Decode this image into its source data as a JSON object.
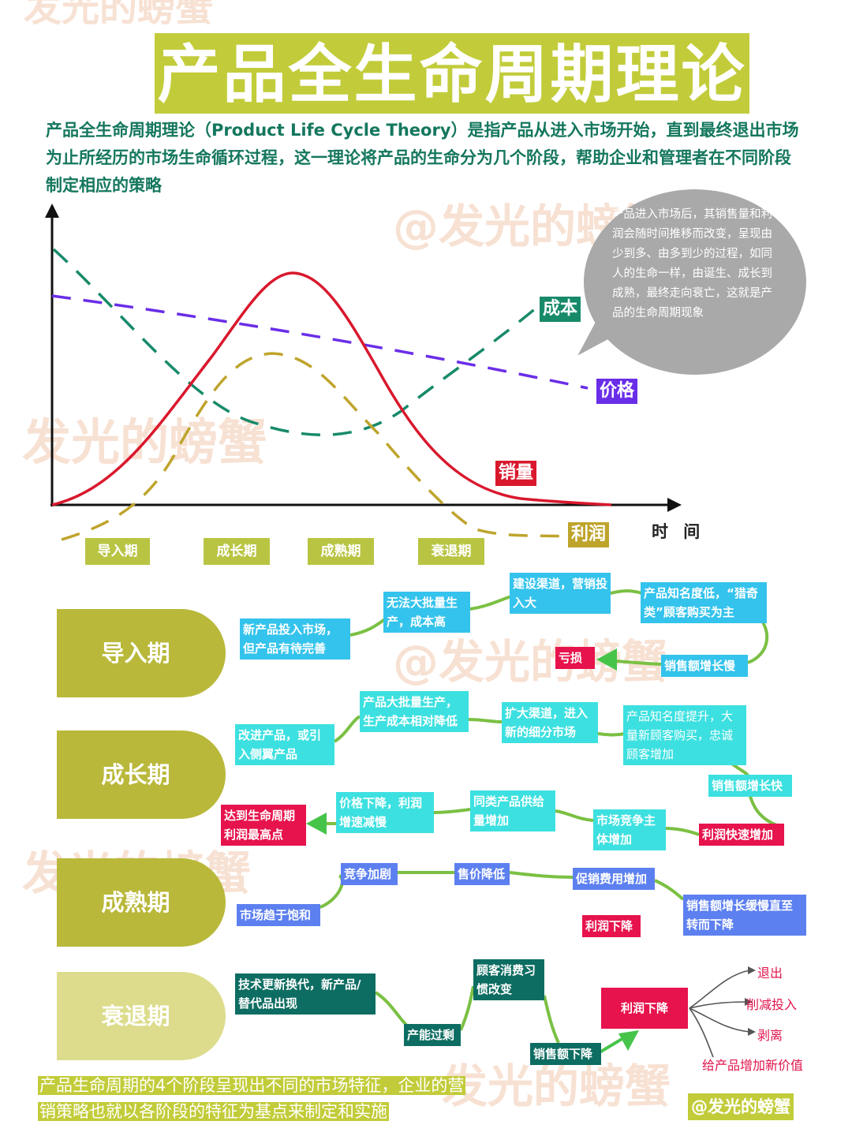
{
  "title": "产品全生命周期理论",
  "intro": "产品全生命周期理论（Product Life Cycle Theory）是指产品从进入市场开始，直到最终退出市场为止所经历的市场生命循环过程，这一理论将产品的生命分为几个阶段，帮助企业和管理者在不同阶段制定相应的策略",
  "bubble_text": "产品进入市场后，其销售量和利润会随时间推移而改变，呈现由少到多、由多到少的过程，如同人的生命一样，由诞生、成长到成熟，最终走向衰亡，这就是产品的生命周期现象",
  "chart": {
    "labels": {
      "cost": "成本",
      "price": "价格",
      "sales": "销量",
      "profit": "利润"
    },
    "x_axis": "时 间",
    "stages": [
      "导入期",
      "成长期",
      "成熟期",
      "衰退期"
    ]
  },
  "colors": {
    "cost": "#178a6a",
    "price": "#6a2ee8",
    "sales": "#d9182d",
    "profit": "#bfa42c",
    "olive": "#b9c443"
  },
  "watermark": {
    "text1": "@发光的螃蟹",
    "text2": "发光的螃蟹",
    "handle": "@发光的螃蟹"
  },
  "intro_stage": {
    "label": "导入期",
    "b1": "新产品投入市场，但产品有待完善",
    "b2": "无法大批量生产，成本高",
    "b3": "建设渠道，营销投入大",
    "b4": "产品知名度低，“猎奇类”顾客购买为主",
    "b5": "销售额增长慢",
    "b6": "亏损"
  },
  "growth_stage": {
    "label": "成长期",
    "b1": "改进产品，或引入侧翼产品",
    "b2": "产品大批量生产，生产成本相对降低",
    "b3": "扩大渠道，进入新的细分市场",
    "b4": "产品知名度提升，大量新顾客购买，忠诚顾客增加",
    "b5": "销售额增长快",
    "b6": "利润快速增加",
    "b7": "市场竞争主体增加",
    "b8": "同类产品供给量增加",
    "b9": "价格下降，利润增速减慢",
    "b10": "达到生命周期利润最高点"
  },
  "mature_stage": {
    "label": "成熟期",
    "b1": "市场趋于饱和",
    "b2": "竞争加剧",
    "b3": "售价降低",
    "b4": "促销费用增加",
    "b5": "销售额增长缓慢直至转而下降",
    "b6": "利润下降"
  },
  "decline_stage": {
    "label": "衰退期",
    "b1": "技术更新换代，新产品/替代品出现",
    "b2": "产能过剩",
    "b3": "顾客消费习惯改变",
    "b4": "销售额下降",
    "b5": "利润下降",
    "options": [
      "退出",
      "削减投入",
      "剥离",
      "给产品增加新价值"
    ]
  },
  "footer": {
    "line1": "产品生命周期的4个阶段呈现出不同的市场特征，企业的营",
    "line2": "销策略也就以各阶段的特征为基点来制定和实施"
  }
}
